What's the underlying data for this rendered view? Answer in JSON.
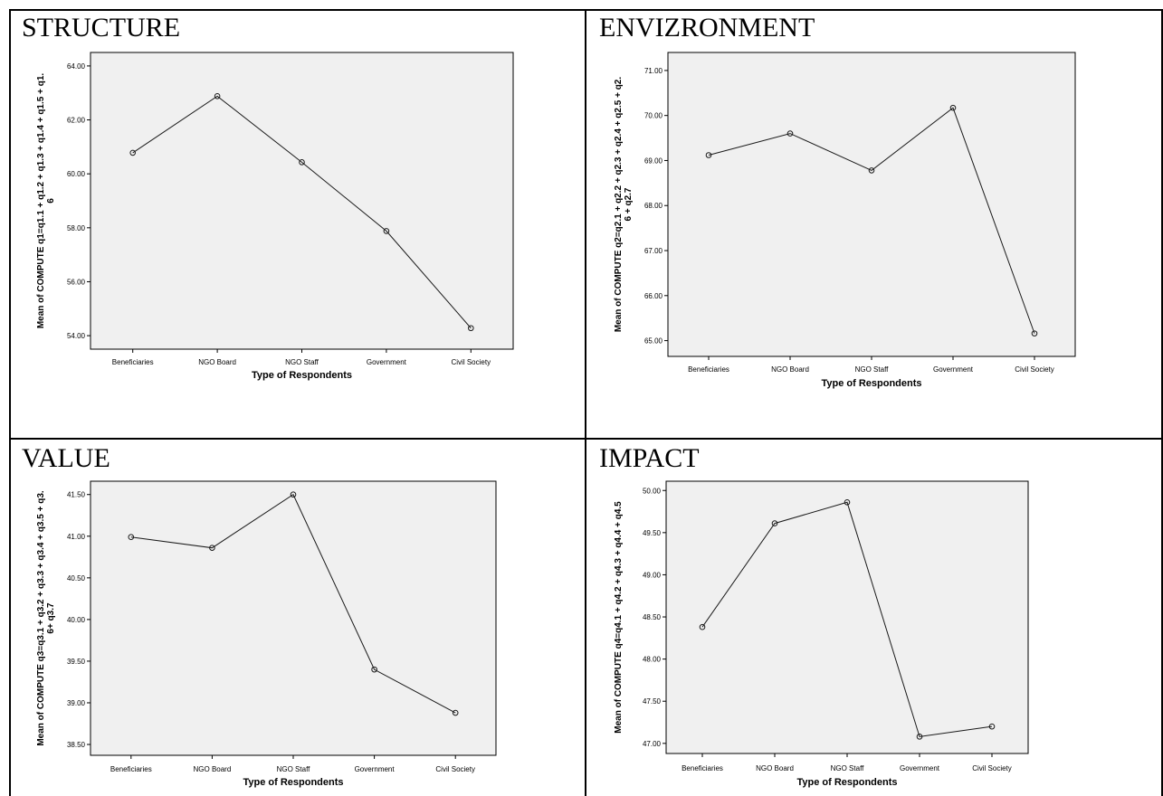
{
  "panels": [
    {
      "key": "structure",
      "title": "STRUCTURE"
    },
    {
      "key": "environment",
      "title": "ENVIZRONMENT"
    },
    {
      "key": "value",
      "title": "VALUE"
    },
    {
      "key": "impact",
      "title": "IMPACT"
    }
  ],
  "chart_data": [
    {
      "type": "line",
      "title": "",
      "xlabel": "Type of Respondents",
      "ylabel": [
        "Mean of COMPUTE q1=q1.1 + q1.2 + q1.3 +  q1.4 + q1.5 + q1.",
        "6"
      ],
      "categories": [
        "Beneficiaries",
        "NGO Board",
        "NGO Staff",
        "Government",
        "Civil Society"
      ],
      "values": [
        60.78,
        62.88,
        60.43,
        57.88,
        54.28
      ],
      "yticks": [
        "54.00",
        "56.00",
        "58.00",
        "60.00",
        "62.00",
        "64.00"
      ],
      "ylim": [
        53.5,
        64.5
      ],
      "grid": false
    },
    {
      "type": "line",
      "title": "",
      "xlabel": "Type of Respondents",
      "ylabel": [
        "Mean of COMPUTE q2=q2.1 + q2.2 + q2.3 +  q2.4 + q2.5 + q2.",
        "6 + q2.7"
      ],
      "categories": [
        "Beneficiaries",
        "NGO Board",
        "NGO Staff",
        "Government",
        "Civil Society"
      ],
      "values": [
        69.12,
        69.6,
        68.78,
        70.17,
        65.16
      ],
      "yticks": [
        "65.00",
        "66.00",
        "67.00",
        "68.00",
        "69.00",
        "70.00",
        "71.00"
      ],
      "ylim": [
        64.65,
        71.4
      ],
      "grid": false
    },
    {
      "type": "line",
      "title": "",
      "xlabel": "Type of Respondents",
      "ylabel": [
        "Mean of COMPUTE q3=q3.1 + q3.2 + q3.3 +  q3.4 + q3.5 + q3.",
        "6+ q3.7"
      ],
      "categories": [
        "Beneficiaries",
        "NGO Board",
        "NGO Staff",
        "Government",
        "Civil Society"
      ],
      "values": [
        40.99,
        40.86,
        41.5,
        39.4,
        38.88
      ],
      "yticks": [
        "38.50",
        "39.00",
        "39.50",
        "40.00",
        "40.50",
        "41.00",
        "41.50"
      ],
      "ylim": [
        38.37,
        41.66
      ],
      "grid": false
    },
    {
      "type": "line",
      "title": "",
      "xlabel": "Type of Respondents",
      "ylabel": [
        "Mean of COMPUTE q4=q4.1 + q4.2 + q4.3 +  q4.4 + q4.5"
      ],
      "categories": [
        "Beneficiaries",
        "NGO Board",
        "NGO Staff",
        "Government",
        "Civil Society"
      ],
      "values": [
        48.38,
        49.61,
        49.86,
        47.08,
        47.2
      ],
      "yticks": [
        "47.00",
        "47.50",
        "48.00",
        "48.50",
        "49.00",
        "49.50",
        "50.00"
      ],
      "ylim": [
        46.88,
        50.11
      ],
      "grid": false
    }
  ],
  "colors": {
    "plot_bg": "#f0f0f0",
    "line": "#1a1a1a",
    "border": "#000000"
  }
}
